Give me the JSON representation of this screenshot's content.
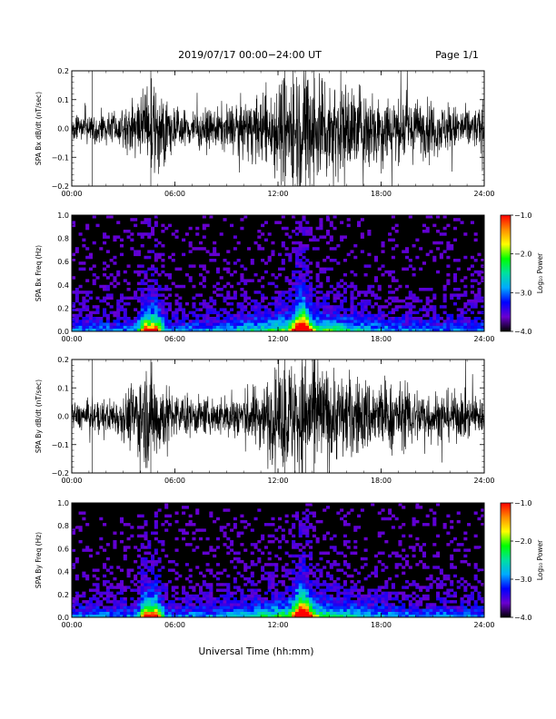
{
  "header": {
    "title": "2019/07/17  00:00−24:00 UT",
    "page": "Page 1/1"
  },
  "x_axis": {
    "label": "Universal Time (hh:mm)",
    "ticks": [
      "00:00",
      "06:00",
      "12:00",
      "18:00",
      "24:00"
    ]
  },
  "colorbar": {
    "label": "Log₁₀ Power",
    "ticks": [
      "−1.0",
      "−2.0",
      "−3.0",
      "−4.0"
    ],
    "colors": [
      "#ff0000",
      "#ff8c00",
      "#ffff00",
      "#00ff00",
      "#00e0a0",
      "#00aaff",
      "#0000ff",
      "#6a00d0",
      "#000000"
    ]
  },
  "chart_data": [
    {
      "type": "line",
      "ylabel": "SPA Bx dB/dt (nT/sec)",
      "xlim": [
        0,
        24
      ],
      "ylim": [
        -0.2,
        0.2
      ],
      "yticks": [
        "0.2",
        "0.1",
        "0.0",
        "−0.1",
        "−0.2"
      ],
      "envelope": {
        "hours": [
          0,
          1,
          2,
          3,
          4,
          4.5,
          5,
          5.5,
          6,
          7,
          8,
          9,
          10,
          11,
          12,
          13,
          13.5,
          14,
          15,
          16,
          17,
          18,
          19,
          20,
          21,
          22,
          23,
          24
        ],
        "amplitude": [
          0.035,
          0.04,
          0.045,
          0.06,
          0.11,
          0.13,
          0.12,
          0.09,
          0.06,
          0.06,
          0.055,
          0.07,
          0.08,
          0.1,
          0.15,
          0.19,
          0.2,
          0.19,
          0.16,
          0.14,
          0.13,
          0.12,
          0.1,
          0.09,
          0.08,
          0.07,
          0.065,
          0.06
        ]
      }
    },
    {
      "type": "heatmap",
      "ylabel": "SPA Bx Freq (Hz)",
      "xlim": [
        0,
        24
      ],
      "ylim": [
        0,
        1.0
      ],
      "yticks": [
        "1.0",
        "0.8",
        "0.6",
        "0.4",
        "0.2",
        "0.0"
      ],
      "zlim": [
        -4.0,
        -1.0
      ]
    },
    {
      "type": "line",
      "ylabel": "SPA By dB/dt (nT/sec)",
      "xlim": [
        0,
        24
      ],
      "ylim": [
        -0.2,
        0.2
      ],
      "yticks": [
        "0.2",
        "0.1",
        "0.0",
        "−0.1",
        "−0.2"
      ],
      "envelope": {
        "hours": [
          0,
          1,
          2,
          3,
          4,
          4.5,
          5,
          5.5,
          6,
          7,
          8,
          9,
          10,
          11,
          12,
          13,
          13.5,
          14,
          15,
          16,
          17,
          18,
          19,
          20,
          21,
          22,
          23,
          24
        ],
        "amplitude": [
          0.04,
          0.045,
          0.05,
          0.07,
          0.14,
          0.16,
          0.14,
          0.1,
          0.07,
          0.06,
          0.055,
          0.065,
          0.08,
          0.1,
          0.15,
          0.19,
          0.2,
          0.18,
          0.15,
          0.13,
          0.12,
          0.11,
          0.1,
          0.09,
          0.08,
          0.075,
          0.07,
          0.06
        ]
      }
    },
    {
      "type": "heatmap",
      "ylabel": "SPA By Freq (Hz)",
      "xlim": [
        0,
        24
      ],
      "ylim": [
        0,
        1.0
      ],
      "yticks": [
        "1.0",
        "0.8",
        "0.6",
        "0.4",
        "0.2",
        "0.0"
      ],
      "zlim": [
        -4.0,
        -1.0
      ]
    }
  ]
}
